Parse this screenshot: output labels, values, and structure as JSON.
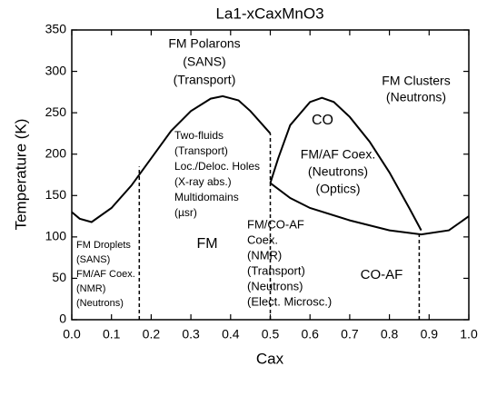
{
  "chart_data": {
    "type": "line",
    "title": "La1-xCaxMnO3",
    "x_label": "Cax",
    "y_label": "Temperature (K)",
    "xlim": [
      0,
      1
    ],
    "ylim": [
      0,
      350
    ],
    "xticks": [
      {
        "value": 0,
        "label": "0.0"
      },
      0.1,
      0.2,
      0.3,
      0.4,
      0.5,
      0.6,
      0.7,
      0.8,
      0.9,
      {
        "value": 1,
        "label": "1.0"
      }
    ],
    "yticks": [
      0,
      50,
      100,
      150,
      200,
      250,
      300,
      350
    ],
    "series": [
      {
        "color": "#000000",
        "dashed": false,
        "x": [
          0,
          0.02,
          0.05,
          0.1,
          0.15,
          0.2,
          0.25,
          0.3,
          0.35,
          0.38,
          0.42,
          0.45,
          0.5
        ],
        "values": [
          130,
          122,
          118,
          135,
          162,
          195,
          228,
          252,
          267,
          270,
          265,
          252,
          225
        ]
      },
      {
        "color": "#000000",
        "dashed": false,
        "x": [
          0.5,
          0.52,
          0.55,
          0.6,
          0.63,
          0.66,
          0.7,
          0.75,
          0.8,
          0.85,
          0.88
        ],
        "values": [
          165,
          195,
          235,
          263,
          268,
          263,
          245,
          215,
          178,
          135,
          108
        ]
      },
      {
        "color": "#000000",
        "dashed": false,
        "x": [
          0.5,
          0.55,
          0.6,
          0.7,
          0.8,
          0.88,
          0.95,
          1
        ],
        "values": [
          165,
          147,
          135,
          120,
          108,
          103,
          108,
          125
        ]
      },
      {
        "color": "#000000",
        "dashed": true,
        "x": [
          0.17,
          0.17
        ],
        "values": [
          0,
          185
        ]
      },
      {
        "color": "#000000",
        "dashed": true,
        "x": [
          0.5,
          0.5
        ],
        "values": [
          0,
          225
        ]
      },
      {
        "color": "#000000",
        "dashed": true,
        "x": [
          0.875,
          0.875
        ],
        "values": [
          0,
          103
        ]
      }
    ],
    "annotations": [
      {
        "lines": [
          "FM Polarons",
          "(SANS)",
          "(Transport)"
        ]
      },
      {
        "lines": [
          "FM Clusters",
          "(Neutrons)"
        ]
      },
      {
        "lines": [
          "CO"
        ]
      },
      {
        "lines": [
          "FM/AF Coex.",
          "(Neutrons)",
          "(Optics)"
        ]
      },
      {
        "lines": [
          "Two-fluids",
          "(Transport)",
          "Loc./Deloc. Holes",
          "(X-ray abs.)",
          "Multidomains",
          "(µsr)"
        ]
      },
      {
        "lines": [
          "FM"
        ]
      },
      {
        "lines": [
          "FM Droplets",
          "(SANS)",
          "FM/AF Coex.",
          "(NMR)",
          "(Neutrons)"
        ]
      },
      {
        "lines": [
          "FM/CO-AF",
          "Coex.",
          "(NMR)",
          "(Transport)",
          "(Neutrons)",
          "(Elect. Microsc.)"
        ]
      },
      {
        "lines": [
          "CO-AF"
        ]
      }
    ]
  }
}
